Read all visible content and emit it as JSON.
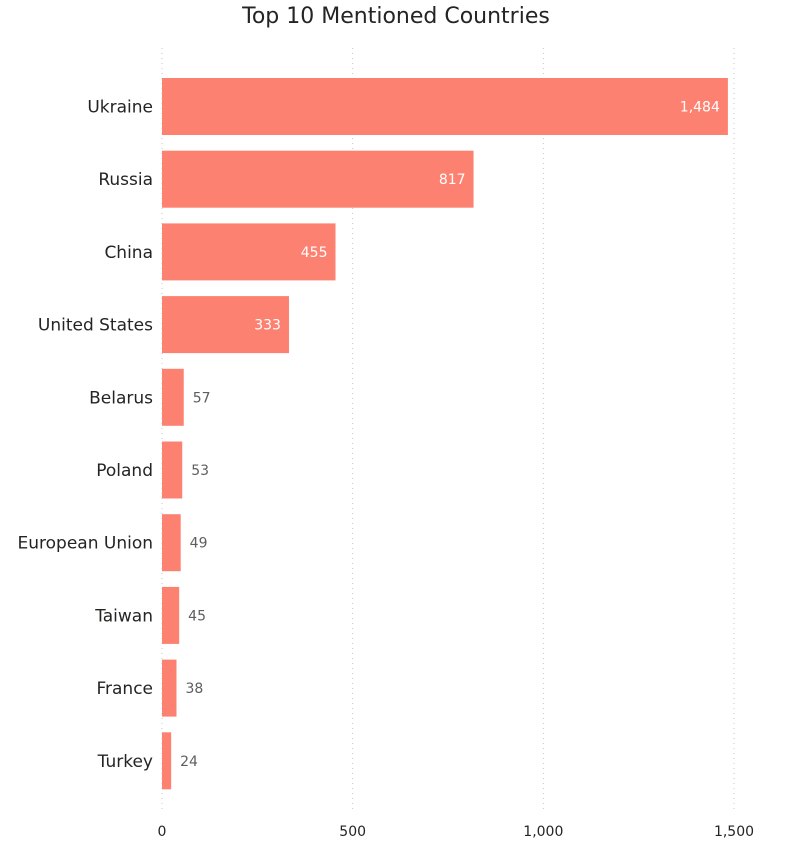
{
  "chart_data": {
    "type": "bar",
    "orientation": "horizontal",
    "title": "Top 10 Mentioned Countries",
    "categories": [
      "Ukraine",
      "Russia",
      "China",
      "United States",
      "Belarus",
      "Poland",
      "European Union",
      "Taiwan",
      "France",
      "Turkey"
    ],
    "values": [
      1484,
      817,
      455,
      333,
      57,
      53,
      49,
      45,
      38,
      24
    ],
    "value_labels": [
      "1,484",
      "817",
      "455",
      "333",
      "57",
      "53",
      "49",
      "45",
      "38",
      "24"
    ],
    "x_ticks": [
      0,
      500,
      1000,
      1500
    ],
    "x_tick_labels": [
      "0",
      "500",
      "1,000",
      "1,500"
    ],
    "xlim": [
      0,
      1500
    ],
    "xlabel": "",
    "ylabel": "",
    "grid": "vertical dotted",
    "legend": "none",
    "bar_color": "#fd8170"
  }
}
